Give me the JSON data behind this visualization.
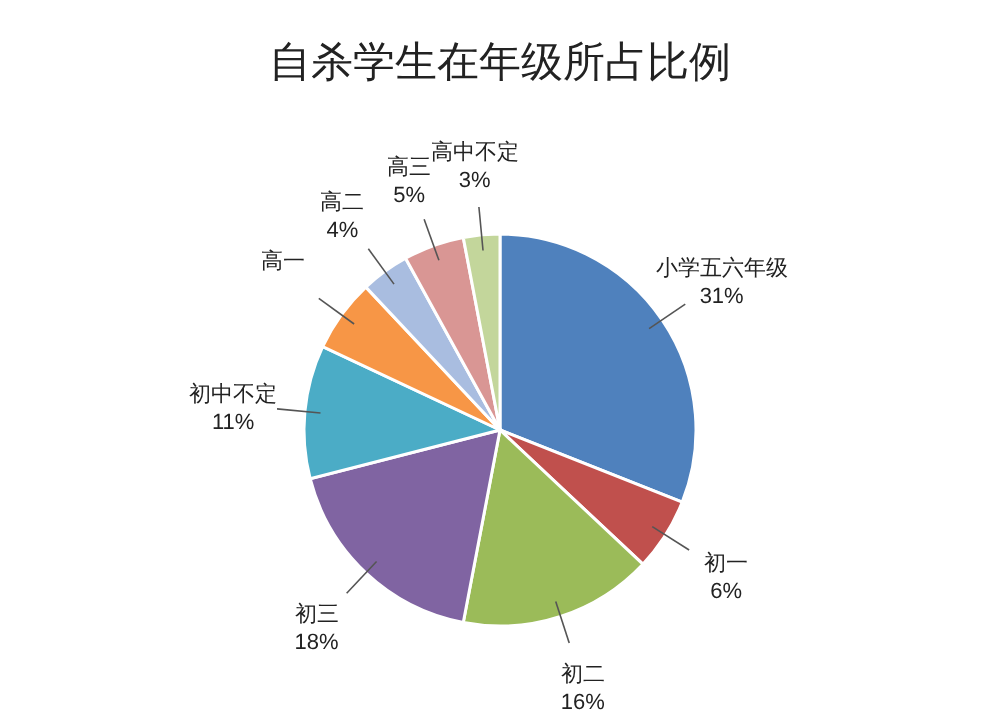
{
  "chart_data": {
    "type": "pie",
    "title": "自杀学生在年级所占比例",
    "categories": [
      "小学五六年级",
      "初一",
      "初二",
      "初三",
      "初中不定",
      "高一",
      "高二",
      "高三",
      "高中不定"
    ],
    "values": [
      31,
      6,
      16,
      18,
      11,
      6,
      4,
      5,
      3
    ],
    "colors": [
      "#4f81bd",
      "#c0504d",
      "#9bbb59",
      "#8064a2",
      "#4bacc6",
      "#f79646",
      "#a9bde0",
      "#d99694",
      "#c3d69b"
    ],
    "value_labels": [
      "31%",
      "6%",
      "16%",
      "18%",
      "11%",
      null,
      "4%",
      "5%",
      "3%"
    ]
  }
}
